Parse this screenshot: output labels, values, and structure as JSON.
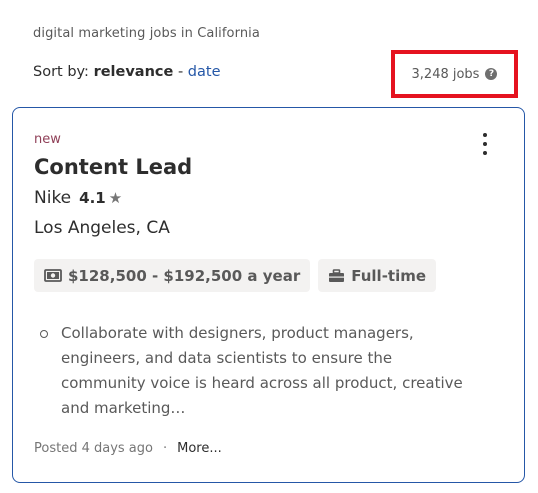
{
  "search": {
    "description": "digital marketing jobs in California"
  },
  "sort": {
    "prefix": "Sort by:",
    "active": "relevance",
    "separator": "-",
    "alternate": "date"
  },
  "job_count": {
    "label": "3,248 jobs",
    "help_icon": "?"
  },
  "job": {
    "badge": "new",
    "title": "Content Lead",
    "company": "Nike",
    "rating": "4.1",
    "rating_icon": "star-icon",
    "location": "Los Angeles, CA",
    "salary": "$128,500 - $192,500 a year",
    "salary_icon": "money-icon",
    "job_type": "Full-time",
    "job_type_icon": "briefcase-icon",
    "snippet": "Collaborate with designers, product managers, engineers, and data scientists to ensure the community voice is heard across all product, creative and marketing…",
    "posted": "Posted 4 days ago",
    "dot": "·",
    "more": "More..."
  },
  "colors": {
    "link": "#2557a7",
    "highlight_border": "#e5121f",
    "new_badge": "#8f3f57"
  }
}
